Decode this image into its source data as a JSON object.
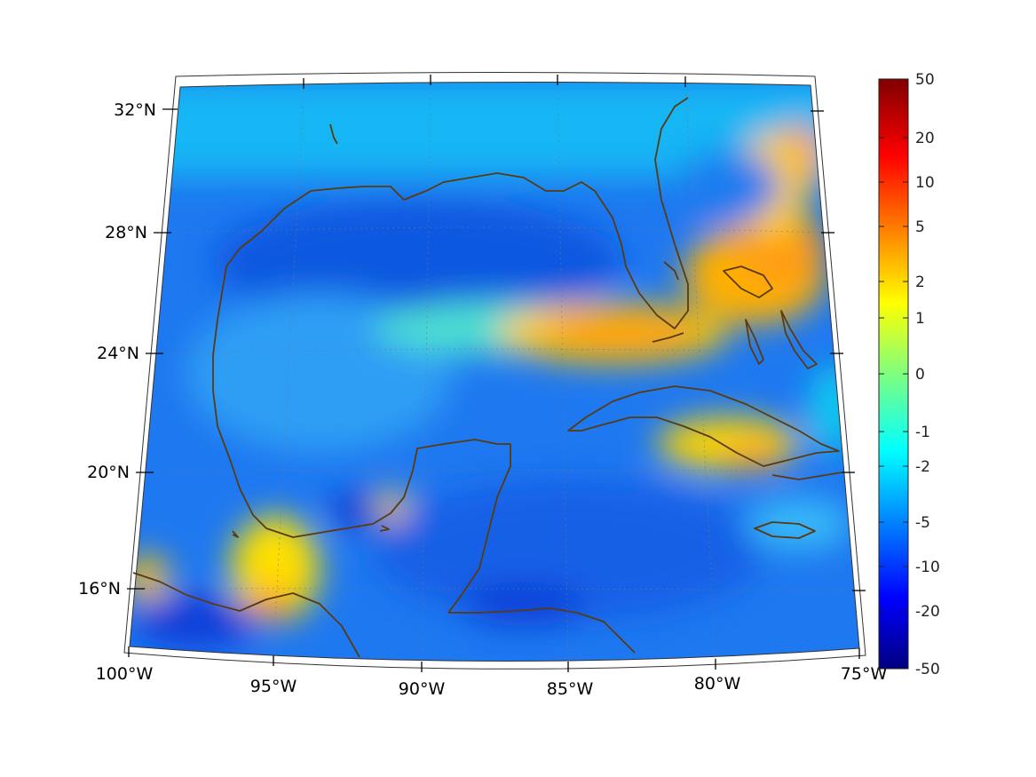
{
  "map": {
    "projection": "conic",
    "lon_range": [
      -100,
      -75
    ],
    "lat_range": [
      14,
      33
    ],
    "longitude_ticks": [
      "100°W",
      "95°W",
      "90°W",
      "85°W",
      "80°W",
      "75°W"
    ],
    "latitude_ticks": [
      "16°N",
      "20°N",
      "24°N",
      "28°N",
      "32°N"
    ],
    "grid": "dotted",
    "coastline_color": "#5a3a10"
  },
  "colorbar": {
    "colormap": "jet",
    "placement": "right",
    "ticks": [
      "50",
      "20",
      "10",
      "5",
      "2",
      "1",
      "0",
      "-1",
      "-2",
      "-5",
      "-10",
      "-20",
      "-50"
    ]
  }
}
